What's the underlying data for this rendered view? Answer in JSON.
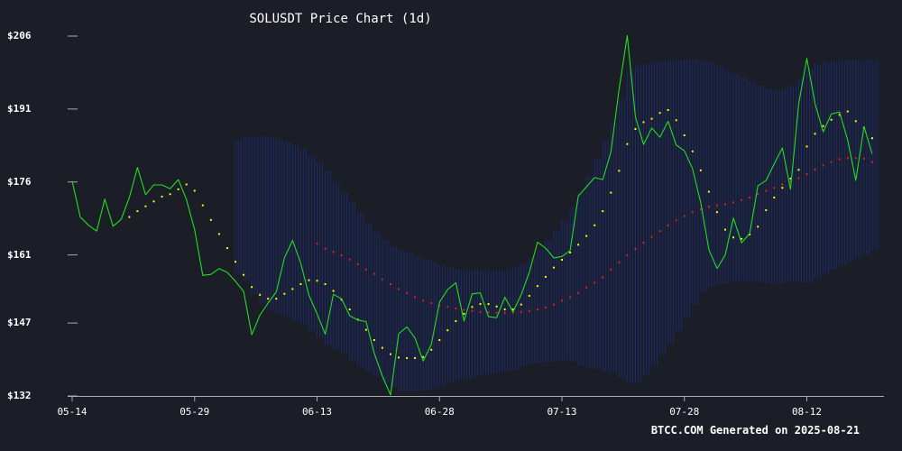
{
  "chart_data": {
    "type": "line",
    "title": "SOLUSDT Price Chart (1d)",
    "footer": "BTCC.COM Generated on 2025-08-21",
    "ylim": [
      132,
      206
    ],
    "y_ticks": [
      206,
      191,
      176,
      161,
      147,
      132
    ],
    "y_tick_labels": [
      "$206",
      "$191",
      "$176",
      "$161",
      "$147",
      "$132"
    ],
    "x_ticks": [
      0,
      15,
      30,
      45,
      60,
      75,
      90
    ],
    "x_tick_labels": [
      "05-14",
      "05-29",
      "06-13",
      "06-28",
      "07-13",
      "07-28",
      "08-12"
    ],
    "colors": {
      "price": "#22dd22",
      "psar": "#ffff00",
      "ma": "#dd2222",
      "band": "#1c2a6e",
      "axis": "#aaaaaa",
      "background": "#1b1e27"
    },
    "series": [
      {
        "name": "Price",
        "values": [
          176.2,
          168.8,
          167.1,
          165.9,
          172.5,
          166.9,
          168.3,
          172.8,
          179.0,
          173.4,
          175.4,
          175.4,
          174.6,
          176.5,
          172.4,
          166.2,
          156.8,
          157.0,
          158.2,
          157.4,
          155.6,
          153.5,
          144.6,
          148.6,
          151.1,
          153.4,
          160.4,
          164.0,
          159.3,
          152.7,
          148.9,
          144.7,
          152.9,
          152.0,
          148.5,
          147.6,
          147.3,
          140.8,
          136.1,
          132.2,
          144.8,
          146.2,
          143.9,
          139.2,
          142.6,
          151.3,
          153.9,
          155.3,
          147.4,
          153.0,
          153.2,
          148.3,
          148.1,
          152.3,
          149.3,
          152.8,
          157.4,
          163.6,
          162.4,
          160.4,
          160.7,
          161.9,
          173.1,
          175.0,
          176.9,
          176.5,
          182.2,
          195.1,
          206.1,
          189.3,
          183.7,
          187.1,
          185.2,
          188.5,
          183.6,
          182.4,
          178.7,
          171.7,
          162.1,
          158.2,
          161.0,
          168.6,
          163.5,
          165.4,
          175.2,
          176.3,
          179.7,
          183.0,
          174.5,
          192.1,
          201.4,
          192.1,
          186.3,
          190.0,
          190.4,
          184.6,
          176.3,
          187.4,
          181.8
        ]
      },
      {
        "name": "Parabolic SAR",
        "values": [
          null,
          null,
          null,
          null,
          null,
          null,
          null,
          168.8,
          170.0,
          171.0,
          172.0,
          173.0,
          173.5,
          174.5,
          175.5,
          174.2,
          171.2,
          168.2,
          165.3,
          162.4,
          159.6,
          156.9,
          154.4,
          152.8,
          152.0,
          152.0,
          153.0,
          154.0,
          155.0,
          155.8,
          155.7,
          155.0,
          153.6,
          151.8,
          149.8,
          147.7,
          145.6,
          143.5,
          141.9,
          140.6,
          139.9,
          139.8,
          139.8,
          140.0,
          141.5,
          143.5,
          145.5,
          147.4,
          148.9,
          150.3,
          150.9,
          150.9,
          150.4,
          149.8,
          149.8,
          150.8,
          152.6,
          154.6,
          156.5,
          158.4,
          160.0,
          161.5,
          163.1,
          164.9,
          167.1,
          170.0,
          173.8,
          178.3,
          183.8,
          186.9,
          188.3,
          189.0,
          190.2,
          190.8,
          188.7,
          185.6,
          182.3,
          178.4,
          174.0,
          169.8,
          166.2,
          164.6,
          164.3,
          165.2,
          166.8,
          170.2,
          172.8,
          174.8,
          176.7,
          178.5,
          183.3,
          185.9,
          187.5,
          188.8,
          189.8,
          190.5,
          188.5,
          187.1,
          185.0
        ]
      },
      {
        "name": "Moving Average",
        "values": [
          null,
          null,
          null,
          null,
          null,
          null,
          null,
          null,
          null,
          null,
          null,
          null,
          null,
          null,
          null,
          null,
          null,
          null,
          null,
          null,
          null,
          null,
          null,
          null,
          null,
          null,
          null,
          null,
          null,
          null,
          163.3,
          162.3,
          161.6,
          160.9,
          160.1,
          159.1,
          158.0,
          157.1,
          156.0,
          155.0,
          154.0,
          153.2,
          152.3,
          151.6,
          151.1,
          150.6,
          150.3,
          150.0,
          149.7,
          149.5,
          149.3,
          149.2,
          149.1,
          149.1,
          149.1,
          149.3,
          149.5,
          149.8,
          150.2,
          150.8,
          151.6,
          152.3,
          153.2,
          154.3,
          155.3,
          156.4,
          158.0,
          159.5,
          160.9,
          162.2,
          163.5,
          164.7,
          165.9,
          167.1,
          168.1,
          169.0,
          169.8,
          170.4,
          170.9,
          171.2,
          171.4,
          171.8,
          172.3,
          172.8,
          173.5,
          174.2,
          174.8,
          175.5,
          176.1,
          176.8,
          177.6,
          178.5,
          179.4,
          180.1,
          180.7,
          180.9,
          180.9,
          180.8,
          180.1
        ]
      },
      {
        "name": "Bollinger Upper",
        "values": [
          null,
          null,
          null,
          null,
          null,
          null,
          null,
          null,
          null,
          null,
          null,
          null,
          null,
          null,
          null,
          null,
          null,
          null,
          null,
          null,
          184.8,
          185.2,
          185.3,
          185.4,
          185.3,
          185.0,
          184.3,
          183.7,
          182.8,
          181.4,
          180.0,
          178.2,
          176.1,
          173.8,
          171.9,
          169.8,
          167.6,
          165.7,
          164.1,
          162.7,
          162.0,
          161.5,
          160.8,
          160.1,
          159.6,
          158.8,
          158.4,
          158.0,
          157.9,
          157.9,
          157.9,
          157.9,
          157.9,
          158.0,
          158.4,
          159.2,
          160.5,
          162.2,
          164.0,
          166.1,
          168.3,
          170.8,
          173.8,
          177.3,
          180.8,
          184.5,
          188.0,
          193.1,
          199.1,
          199.9,
          200.2,
          200.6,
          200.8,
          201.1,
          201.1,
          201.2,
          201.2,
          201.0,
          200.6,
          199.9,
          199.0,
          198.2,
          197.5,
          196.6,
          195.8,
          195.2,
          194.8,
          195.2,
          195.9,
          197.3,
          199.4,
          200.3,
          200.7,
          200.9,
          201.1,
          201.1,
          201.1,
          201.2,
          201.2
        ]
      },
      {
        "name": "Bollinger Lower",
        "values": [
          null,
          null,
          null,
          null,
          null,
          null,
          null,
          null,
          null,
          null,
          null,
          null,
          null,
          null,
          null,
          null,
          null,
          null,
          null,
          null,
          157.0,
          155.8,
          152.9,
          150.9,
          149.7,
          148.9,
          148.3,
          147.5,
          146.7,
          145.4,
          144.0,
          142.4,
          141.6,
          140.8,
          139.4,
          138.0,
          137.1,
          136.0,
          134.9,
          133.8,
          133.0,
          133.0,
          133.0,
          133.1,
          133.5,
          134.2,
          134.8,
          135.4,
          135.5,
          135.9,
          136.4,
          136.5,
          136.8,
          137.2,
          137.5,
          138.1,
          138.7,
          138.8,
          139.0,
          139.1,
          139.3,
          139.1,
          138.2,
          137.7,
          137.6,
          137.1,
          136.7,
          135.7,
          134.6,
          134.9,
          136.4,
          138.2,
          140.3,
          142.6,
          145.4,
          148.0,
          150.7,
          153.5,
          154.4,
          155.0,
          155.3,
          155.6,
          155.6,
          155.6,
          155.4,
          155.2,
          155.2,
          155.3,
          155.6,
          155.4,
          155.3,
          156.3,
          157.2,
          158.0,
          158.8,
          159.6,
          160.3,
          161.1,
          162.0
        ]
      }
    ]
  }
}
